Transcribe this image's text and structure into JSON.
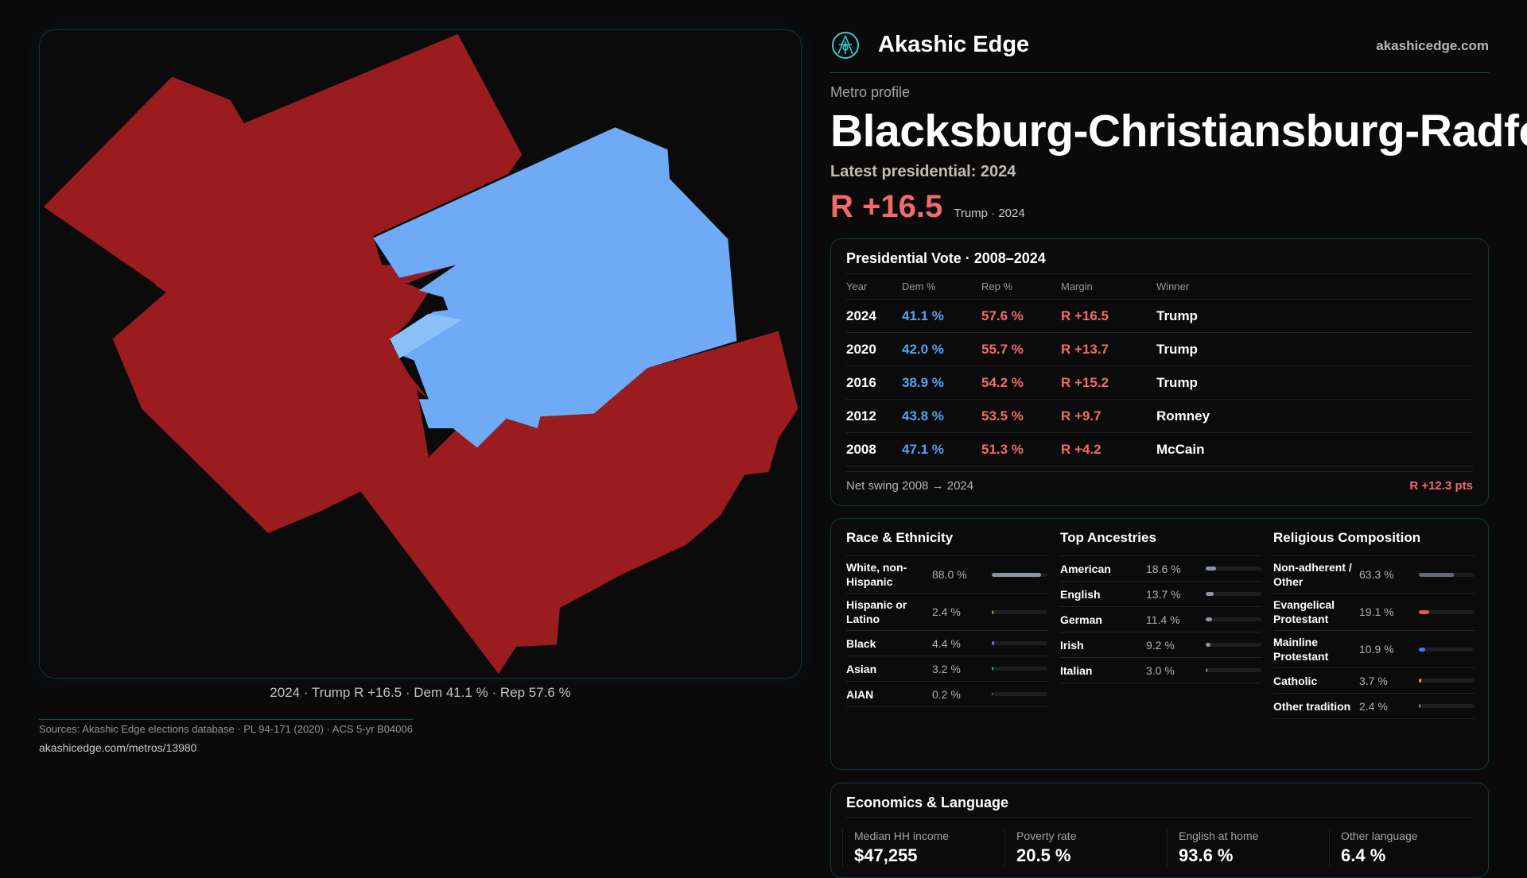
{
  "brand": {
    "name": "Akashic Edge",
    "domain": "akashicedge.com",
    "logo_icon": "akashic-emblem-icon"
  },
  "profile": {
    "eyebrow": "Metro profile",
    "title": "Blacksburg-Christiansburg-Radford",
    "latest": "Latest presidential: 2024",
    "margin": "R +16.5",
    "margin_sub": "Trump · 2024"
  },
  "map": {
    "caption": "2024 · Trump R +16.5 · Dem 41.1 % · Rep 57.6 %",
    "colors": {
      "rep": "#9b1c1f",
      "dem": "#6eaaf5",
      "dem_light": "#8cc0f8"
    }
  },
  "vote": {
    "title": "Presidential Vote · 2008–2024",
    "headers": [
      "Year",
      "Dem %",
      "Rep %",
      "Margin",
      "Winner"
    ],
    "rows": [
      [
        "2024",
        "41.1 %",
        "57.6 %",
        "R +16.5",
        "Trump"
      ],
      [
        "2020",
        "42.0 %",
        "55.7 %",
        "R +13.7",
        "Trump"
      ],
      [
        "2016",
        "38.9 %",
        "54.2 %",
        "R +15.2",
        "Trump"
      ],
      [
        "2012",
        "43.8 %",
        "53.5 %",
        "R +9.7",
        "Romney"
      ],
      [
        "2008",
        "47.1 %",
        "51.3 %",
        "R +4.2",
        "McCain"
      ]
    ],
    "swing_label": "Net swing 2008 → 2024",
    "swing_value": "R +12.3 pts"
  },
  "race": {
    "title": "Race & Ethnicity",
    "items": [
      {
        "label": "White, non-Hispanic",
        "value": "88.0 %",
        "pct": 88.0,
        "color": "#8a94a6"
      },
      {
        "label": "Hispanic or Latino",
        "value": "2.4 %",
        "pct": 2.4,
        "color": "#d99a3a"
      },
      {
        "label": "Black",
        "value": "4.4 %",
        "pct": 4.4,
        "color": "#8b6fd6"
      },
      {
        "label": "Asian",
        "value": "3.2 %",
        "pct": 3.2,
        "color": "#2bb38a"
      },
      {
        "label": "AIAN",
        "value": "0.2 %",
        "pct": 0.2,
        "color": "#8a94a6"
      }
    ]
  },
  "ancestry": {
    "title": "Top Ancestries",
    "items": [
      {
        "label": "American",
        "value": "18.6 %",
        "pct": 18.6,
        "color": "#8a94a6"
      },
      {
        "label": "English",
        "value": "13.7 %",
        "pct": 13.7,
        "color": "#8a94a6"
      },
      {
        "label": "German",
        "value": "11.4 %",
        "pct": 11.4,
        "color": "#8a94a6"
      },
      {
        "label": "Irish",
        "value": "9.2 %",
        "pct": 9.2,
        "color": "#8a94a6"
      },
      {
        "label": "Italian",
        "value": "3.0 %",
        "pct": 3.0,
        "color": "#8a94a6"
      }
    ]
  },
  "religion": {
    "title": "Religious Composition",
    "items": [
      {
        "label": "Non-adherent / Other",
        "value": "63.3 %",
        "pct": 63.3,
        "color": "#646a78"
      },
      {
        "label": "Evangelical Protestant",
        "value": "19.1 %",
        "pct": 19.1,
        "color": "#e05a5a"
      },
      {
        "label": "Mainline Protestant",
        "value": "10.9 %",
        "pct": 10.9,
        "color": "#3b82f6"
      },
      {
        "label": "Catholic",
        "value": "3.7 %",
        "pct": 3.7,
        "color": "#eab308"
      },
      {
        "label": "Other tradition",
        "value": "2.4 %",
        "pct": 2.4,
        "color": "#8a94a6"
      }
    ]
  },
  "econ": {
    "title": "Economics & Language",
    "stats": [
      {
        "label": "Median HH income",
        "value": "$47,255"
      },
      {
        "label": "Poverty rate",
        "value": "20.5 %"
      },
      {
        "label": "English at home",
        "value": "93.6 %"
      },
      {
        "label": "Other language",
        "value": "6.4 %"
      }
    ]
  },
  "footer": {
    "sources": "Sources: Akashic Edge elections database · PL 94-171 (2020) · ACS 5-yr B04006",
    "url": "akashicedge.com/metros/13980"
  }
}
